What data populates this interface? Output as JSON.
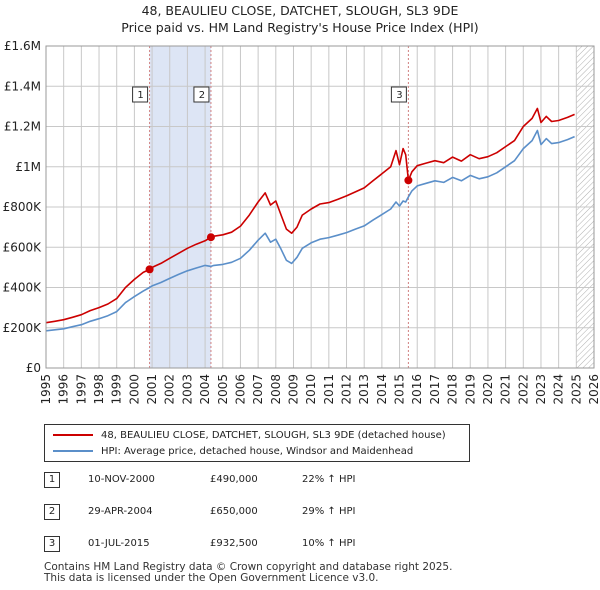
{
  "title_line1": "48, BEAULIEU CLOSE, DATCHET, SLOUGH, SL3 9DE",
  "title_line2": "Price paid vs. HM Land Registry's House Price Index (HPI)",
  "colors": {
    "property": "#cc0000",
    "hpi": "#5b8fc9",
    "band": "#dde5f5",
    "grid": "#c8c8c8",
    "marker_line": "#d08080",
    "future_hatch": "#b0b0b0"
  },
  "chart_data": {
    "type": "line",
    "xlim": [
      1995,
      2026
    ],
    "ylim": [
      0,
      1600000
    ],
    "x_ticks": [
      1995,
      1996,
      1997,
      1998,
      1999,
      2000,
      2001,
      2002,
      2003,
      2004,
      2005,
      2006,
      2007,
      2008,
      2009,
      2010,
      2011,
      2012,
      2013,
      2014,
      2015,
      2016,
      2017,
      2018,
      2019,
      2020,
      2021,
      2022,
      2023,
      2024,
      2025,
      2026
    ],
    "x_tick_labels": [
      "1995",
      "1996",
      "1997",
      "1998",
      "1999",
      "2000",
      "2001",
      "2002",
      "2003",
      "2004",
      "2005",
      "2006",
      "2007",
      "2008",
      "2009",
      "2010",
      "2011",
      "2012",
      "2013",
      "2014",
      "2015",
      "2016",
      "2017",
      "2018",
      "2019",
      "2020",
      "2021",
      "2022",
      "2023",
      "2024",
      "2025",
      "2026"
    ],
    "y_ticks": [
      0,
      200000,
      400000,
      600000,
      800000,
      1000000,
      1200000,
      1400000,
      1600000
    ],
    "y_tick_labels": [
      "£0",
      "£200K",
      "£400K",
      "£600K",
      "£800K",
      "£1M",
      "£1.2M",
      "£1.4M",
      "£1.6M"
    ],
    "shaded_bands": [
      [
        2000.86,
        2004.33
      ],
      [
        2015.5,
        2015.5
      ]
    ],
    "future_from": 2025.0,
    "series": [
      {
        "name": "48, BEAULIEU CLOSE, DATCHET, SLOUGH, SL3 9DE (detached house)",
        "color": "#cc0000",
        "x": [
          1995.0,
          1995.5,
          1996.0,
          1996.5,
          1997.0,
          1997.5,
          1998.0,
          1998.5,
          1999.0,
          1999.5,
          2000.0,
          2000.5,
          2000.86,
          2001.0,
          2001.5,
          2002.0,
          2002.5,
          2003.0,
          2003.5,
          2004.0,
          2004.33,
          2004.5,
          2005.0,
          2005.5,
          2006.0,
          2006.5,
          2007.0,
          2007.4,
          2007.7,
          2008.0,
          2008.3,
          2008.6,
          2008.9,
          2009.2,
          2009.5,
          2010.0,
          2010.5,
          2011.0,
          2011.5,
          2012.0,
          2012.5,
          2013.0,
          2013.5,
          2014.0,
          2014.5,
          2014.8,
          2015.0,
          2015.2,
          2015.35,
          2015.5,
          2015.7,
          2016.0,
          2016.5,
          2017.0,
          2017.5,
          2018.0,
          2018.5,
          2019.0,
          2019.5,
          2020.0,
          2020.5,
          2021.0,
          2021.5,
          2022.0,
          2022.5,
          2022.8,
          2023.0,
          2023.3,
          2023.6,
          2024.0,
          2024.5,
          2024.9
        ],
        "values": [
          225000,
          232000,
          240000,
          252000,
          265000,
          285000,
          300000,
          318000,
          345000,
          400000,
          440000,
          475000,
          490000,
          500000,
          520000,
          545000,
          570000,
          595000,
          615000,
          632000,
          650000,
          655000,
          662000,
          675000,
          705000,
          760000,
          825000,
          870000,
          810000,
          830000,
          760000,
          690000,
          670000,
          700000,
          760000,
          790000,
          815000,
          822000,
          838000,
          855000,
          875000,
          895000,
          930000,
          965000,
          1000000,
          1080000,
          1010000,
          1090000,
          1060000,
          932500,
          975000,
          1005000,
          1018000,
          1030000,
          1020000,
          1048000,
          1028000,
          1060000,
          1040000,
          1050000,
          1070000,
          1100000,
          1130000,
          1200000,
          1240000,
          1290000,
          1220000,
          1250000,
          1225000,
          1230000,
          1245000,
          1260000
        ]
      },
      {
        "name": "HPI: Average price, detached house, Windsor and Maidenhead",
        "color": "#5b8fc9",
        "x": [
          1995.0,
          1995.5,
          1996.0,
          1996.5,
          1997.0,
          1997.5,
          1998.0,
          1998.5,
          1999.0,
          1999.5,
          2000.0,
          2000.5,
          2000.86,
          2001.0,
          2001.5,
          2002.0,
          2002.5,
          2003.0,
          2003.5,
          2004.0,
          2004.33,
          2004.5,
          2005.0,
          2005.5,
          2006.0,
          2006.5,
          2007.0,
          2007.4,
          2007.7,
          2008.0,
          2008.3,
          2008.6,
          2008.9,
          2009.2,
          2009.5,
          2010.0,
          2010.5,
          2011.0,
          2011.5,
          2012.0,
          2012.5,
          2013.0,
          2013.5,
          2014.0,
          2014.5,
          2014.8,
          2015.0,
          2015.2,
          2015.35,
          2015.5,
          2015.7,
          2016.0,
          2016.5,
          2017.0,
          2017.5,
          2018.0,
          2018.5,
          2019.0,
          2019.5,
          2020.0,
          2020.5,
          2021.0,
          2021.5,
          2022.0,
          2022.5,
          2022.8,
          2023.0,
          2023.3,
          2023.6,
          2024.0,
          2024.5,
          2024.9
        ],
        "values": [
          185000,
          190000,
          195000,
          205000,
          215000,
          232000,
          245000,
          260000,
          280000,
          325000,
          355000,
          382000,
          400000,
          408000,
          425000,
          445000,
          465000,
          483000,
          497000,
          510000,
          505000,
          510000,
          515000,
          525000,
          545000,
          585000,
          635000,
          670000,
          625000,
          640000,
          590000,
          535000,
          520000,
          550000,
          595000,
          622000,
          640000,
          648000,
          660000,
          673000,
          690000,
          706000,
          735000,
          762000,
          790000,
          825000,
          805000,
          830000,
          825000,
          850000,
          880000,
          905000,
          918000,
          930000,
          922000,
          947000,
          930000,
          957000,
          940000,
          950000,
          970000,
          1000000,
          1030000,
          1090000,
          1130000,
          1180000,
          1110000,
          1140000,
          1115000,
          1120000,
          1135000,
          1150000
        ]
      }
    ],
    "sales": [
      {
        "label": "1",
        "x": 2000.86,
        "value": 490000
      },
      {
        "label": "2",
        "x": 2004.33,
        "value": 650000
      },
      {
        "label": "3",
        "x": 2015.5,
        "value": 932500
      }
    ]
  },
  "legend": {
    "property_label": "48, BEAULIEU CLOSE, DATCHET, SLOUGH, SL3 9DE (detached house)",
    "hpi_label": "HPI: Average price, detached house, Windsor and Maidenhead"
  },
  "sales_table": [
    {
      "num": "1",
      "date": "10-NOV-2000",
      "price": "£490,000",
      "hpi": "22% ↑ HPI"
    },
    {
      "num": "2",
      "date": "29-APR-2004",
      "price": "£650,000",
      "hpi": "29% ↑ HPI"
    },
    {
      "num": "3",
      "date": "01-JUL-2015",
      "price": "£932,500",
      "hpi": "10% ↑ HPI"
    }
  ],
  "footer_line1": "Contains HM Land Registry data © Crown copyright and database right 2025.",
  "footer_line2": "This data is licensed under the Open Government Licence v3.0."
}
